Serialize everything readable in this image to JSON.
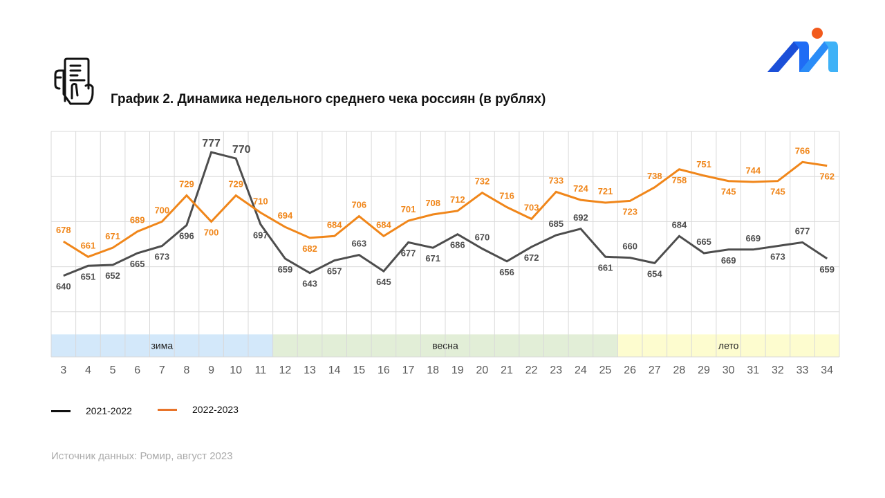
{
  "header": {
    "title": "График 2. Динамика недельного среднего чека россиян (в рублях)",
    "icon": "receipt-in-hand-icon",
    "logo": "romir-logo-icon"
  },
  "colors": {
    "series_2021": "#4d4d4d",
    "series_2022": "#f0861a",
    "season_winter": "#d3e8fa",
    "season_spring": "#e2eed7",
    "season_summer": "#fdfccf",
    "grid": "#d9d9d9"
  },
  "chart_data": {
    "type": "line",
    "title": "График 2. Динамика недельного среднего чека россиян (в рублях)",
    "xlabel": "",
    "ylabel": "",
    "x": [
      3,
      4,
      5,
      6,
      7,
      8,
      9,
      10,
      11,
      12,
      13,
      14,
      15,
      16,
      17,
      18,
      19,
      20,
      21,
      22,
      23,
      24,
      25,
      26,
      27,
      28,
      29,
      30,
      31,
      32,
      33,
      34
    ],
    "ylim": [
      550,
      800
    ],
    "grid": true,
    "legend_position": "bottom-left",
    "series": [
      {
        "name": "2021-2022",
        "values": [
          640,
          651,
          652,
          665,
          673,
          696,
          777,
          770,
          697,
          659,
          643,
          657,
          663,
          645,
          677,
          671,
          686,
          670,
          656,
          672,
          685,
          692,
          661,
          660,
          654,
          684,
          665,
          669,
          669,
          673,
          677,
          659
        ]
      },
      {
        "name": "2022-2023",
        "values": [
          678,
          661,
          671,
          689,
          700,
          729,
          700,
          729,
          710,
          694,
          682,
          684,
          706,
          684,
          701,
          708,
          712,
          732,
          716,
          703,
          733,
          724,
          721,
          723,
          738,
          758,
          751,
          745,
          744,
          745,
          766,
          762
        ]
      }
    ],
    "seasons": [
      {
        "label": "зима",
        "from": 3,
        "to": 11
      },
      {
        "label": "весна",
        "from": 12,
        "to": 25
      },
      {
        "label": "лето",
        "from": 26,
        "to": 34
      }
    ]
  },
  "legend": [
    {
      "label": "2021-2022"
    },
    {
      "label": "2022-2023"
    }
  ],
  "footer": {
    "source": "Источник данных: Ромир, август 2023"
  }
}
